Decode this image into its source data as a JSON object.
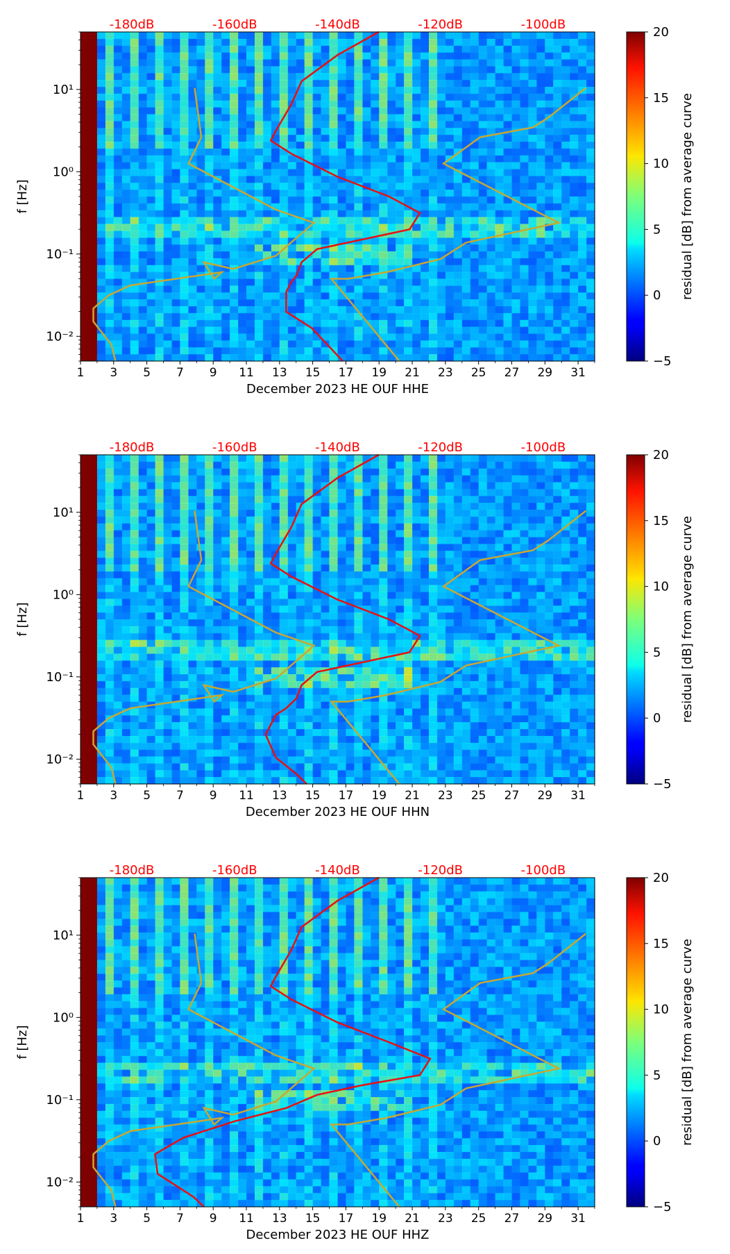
{
  "chart_data": [
    {
      "type": "heatmap",
      "xlabel": "December 2023 HE OUF  HHE",
      "ylabel": "f [Hz]",
      "x_ticks": [
        "1",
        "3",
        "5",
        "7",
        "9",
        "11",
        "13",
        "15",
        "17",
        "19",
        "21",
        "23",
        "25",
        "27",
        "29",
        "31"
      ],
      "xlim": [
        1,
        32
      ],
      "y_ticks": [
        "10⁻²",
        "10⁻¹",
        "10⁰",
        "10¹"
      ],
      "y_tick_values": [
        0.01,
        0.1,
        1,
        10
      ],
      "ylim": [
        0.005,
        50
      ],
      "y_scale": "log",
      "top_axis_ticks": [
        "-180dB",
        "-160dB",
        "-140dB",
        "-120dB",
        "-100dB"
      ],
      "top_axis_color": "#ff0000",
      "colorbar": {
        "label": "residual [dB] from average curve",
        "ticks": [
          "−5",
          "0",
          "5",
          "10",
          "15",
          "20"
        ],
        "range": [
          -5,
          20
        ]
      }
    },
    {
      "type": "heatmap",
      "xlabel": "December 2023 HE OUF  HHN",
      "ylabel": "f [Hz]",
      "x_ticks": [
        "1",
        "3",
        "5",
        "7",
        "9",
        "11",
        "13",
        "15",
        "17",
        "19",
        "21",
        "23",
        "25",
        "27",
        "29",
        "31"
      ],
      "xlim": [
        1,
        32
      ],
      "y_ticks": [
        "10⁻²",
        "10⁻¹",
        "10⁰",
        "10¹"
      ],
      "y_tick_values": [
        0.01,
        0.1,
        1,
        10
      ],
      "ylim": [
        0.005,
        50
      ],
      "y_scale": "log",
      "top_axis_ticks": [
        "-180dB",
        "-160dB",
        "-140dB",
        "-120dB",
        "-100dB"
      ],
      "top_axis_color": "#ff0000",
      "colorbar": {
        "label": "residual [dB] from average curve",
        "ticks": [
          "−5",
          "0",
          "5",
          "10",
          "15",
          "20"
        ],
        "range": [
          -5,
          20
        ]
      }
    },
    {
      "type": "heatmap",
      "xlabel": "December 2023 HE OUF  HHZ",
      "ylabel": "f [Hz]",
      "x_ticks": [
        "1",
        "3",
        "5",
        "7",
        "9",
        "11",
        "13",
        "15",
        "17",
        "19",
        "21",
        "23",
        "25",
        "27",
        "29",
        "31"
      ],
      "xlim": [
        1,
        32
      ],
      "y_ticks": [
        "10⁻²",
        "10⁻¹",
        "10⁰",
        "10¹"
      ],
      "y_tick_values": [
        0.01,
        0.1,
        1,
        10
      ],
      "ylim": [
        0.005,
        50
      ],
      "y_scale": "log",
      "top_axis_ticks": [
        "-180dB",
        "-160dB",
        "-140dB",
        "-120dB",
        "-100dB"
      ],
      "top_axis_color": "#ff0000",
      "colorbar": {
        "label": "residual [dB] from average curve",
        "ticks": [
          "−5",
          "0",
          "5",
          "10",
          "15",
          "20"
        ],
        "range": [
          -5,
          20
        ]
      }
    }
  ]
}
